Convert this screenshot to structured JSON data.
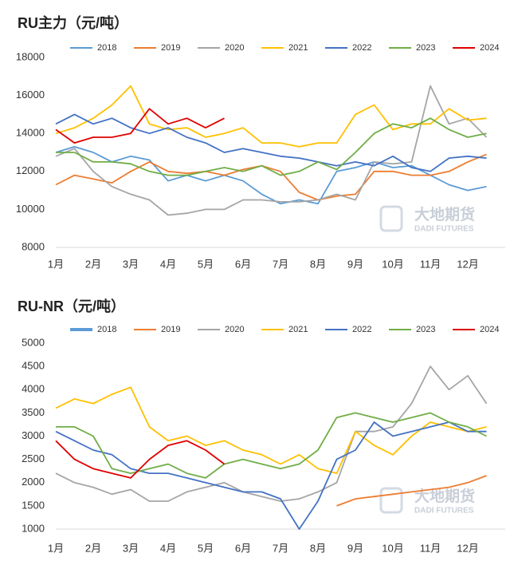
{
  "chart_data": [
    {
      "type": "line",
      "title": "RU主力（元/吨）",
      "categories": [
        "1月",
        null,
        "2月",
        null,
        "3月",
        null,
        "4月",
        null,
        "5月",
        null,
        "6月",
        null,
        "7月",
        null,
        "8月",
        null,
        "9月",
        null,
        "10月",
        null,
        "11月",
        null,
        "12月",
        null
      ],
      "ylim": [
        8000,
        18000
      ],
      "yticks": [
        8000,
        10000,
        12000,
        14000,
        16000,
        18000
      ],
      "grid": false,
      "annotations": [
        "大地期货",
        "DADI FUTURES"
      ],
      "series": [
        {
          "name": "2018",
          "color": "#5b9bd5",
          "values": [
            13000,
            13300,
            13000,
            12500,
            12800,
            12600,
            11500,
            11800,
            11500,
            11800,
            11500,
            10800,
            10300,
            10500,
            10300,
            12000,
            12200,
            12500,
            12200,
            12300,
            11800,
            11300,
            11000,
            11200
          ]
        },
        {
          "name": "2019",
          "color": "#ed7d31",
          "values": [
            11300,
            11800,
            11600,
            11400,
            12000,
            12500,
            12000,
            11900,
            12000,
            11800,
            12100,
            12300,
            12000,
            10900,
            10500,
            10700,
            10800,
            12000,
            12000,
            11800,
            11800,
            12000,
            12500,
            12900
          ]
        },
        {
          "name": "2020",
          "color": "#a5a5a5",
          "values": [
            12800,
            13200,
            12000,
            11200,
            10800,
            10500,
            9700,
            9800,
            10000,
            10000,
            10500,
            10500,
            10400,
            10400,
            10500,
            10800,
            10500,
            12500,
            12400,
            12500,
            16500,
            14500,
            14800,
            13800
          ]
        },
        {
          "name": "2021",
          "color": "#ffc000",
          "values": [
            14000,
            14300,
            14800,
            15500,
            16500,
            14500,
            14200,
            14300,
            13800,
            14000,
            14300,
            13500,
            13500,
            13300,
            13500,
            13500,
            15000,
            15500,
            14200,
            14500,
            14500,
            15300,
            14700,
            14800
          ]
        },
        {
          "name": "2022",
          "color": "#4472c4",
          "values": [
            14500,
            15000,
            14500,
            14800,
            14300,
            14000,
            14300,
            13800,
            13500,
            13000,
            13200,
            13000,
            12800,
            12700,
            12500,
            12300,
            12500,
            12300,
            12800,
            12200,
            12000,
            12700,
            12800,
            12700
          ]
        },
        {
          "name": "2023",
          "color": "#70ad47",
          "values": [
            13000,
            13000,
            12500,
            12500,
            12400,
            12000,
            11800,
            11800,
            12000,
            12200,
            12000,
            12300,
            11800,
            12000,
            12500,
            12100,
            13000,
            14000,
            14500,
            14300,
            14800,
            14200,
            13800,
            14000
          ]
        },
        {
          "name": "2024",
          "color": "#e00000",
          "values": [
            14200,
            13500,
            13800,
            13800,
            14000,
            15300,
            14500,
            14800,
            14300,
            14800,
            null,
            null,
            null,
            null,
            null,
            null,
            null,
            null,
            null,
            null,
            null,
            null,
            null,
            null
          ]
        }
      ]
    },
    {
      "type": "line",
      "title": "RU-NR（元/吨）",
      "categories": [
        "1月",
        null,
        "2月",
        null,
        "3月",
        null,
        "4月",
        null,
        "5月",
        null,
        "6月",
        null,
        "7月",
        null,
        "8月",
        null,
        "9月",
        null,
        "10月",
        null,
        "11月",
        null,
        "12月",
        null
      ],
      "ylim": [
        1000,
        5000
      ],
      "yticks": [
        1000,
        1500,
        2000,
        2500,
        3000,
        3500,
        4000,
        4500,
        5000
      ],
      "grid": false,
      "annotations": [
        "大地期货",
        "DADI FUTURES"
      ],
      "series": [
        {
          "name": "2018",
          "color": "#5b9bd5",
          "values": [
            null,
            null,
            null,
            null,
            null,
            null,
            null,
            null,
            null,
            null,
            null,
            null,
            null,
            null,
            null,
            null,
            null,
            null,
            null,
            null,
            null,
            null,
            null,
            null
          ]
        },
        {
          "name": "2019",
          "color": "#ed7d31",
          "values": [
            null,
            null,
            null,
            null,
            null,
            null,
            null,
            null,
            null,
            null,
            null,
            null,
            null,
            null,
            null,
            1500,
            1650,
            1700,
            1750,
            1800,
            1850,
            1900,
            2000,
            2150
          ]
        },
        {
          "name": "2020",
          "color": "#a5a5a5",
          "values": [
            2200,
            2000,
            1900,
            1750,
            1850,
            1600,
            1600,
            1800,
            1900,
            2000,
            1800,
            1700,
            1600,
            1650,
            1800,
            2000,
            3100,
            3100,
            3200,
            3700,
            4500,
            4000,
            4300,
            3700
          ]
        },
        {
          "name": "2021",
          "color": "#ffc000",
          "values": [
            3600,
            3800,
            3700,
            3900,
            4050,
            3200,
            2900,
            3000,
            2800,
            2900,
            2700,
            2600,
            2400,
            2600,
            2300,
            2200,
            3100,
            2800,
            2600,
            3000,
            3300,
            3200,
            3100,
            3200
          ]
        },
        {
          "name": "2022",
          "color": "#4472c4",
          "values": [
            3100,
            2900,
            2700,
            2600,
            2300,
            2200,
            2200,
            2100,
            2000,
            1900,
            1800,
            1800,
            1650,
            1000,
            1600,
            2500,
            2700,
            3300,
            3000,
            3100,
            3200,
            3300,
            3100,
            3100
          ]
        },
        {
          "name": "2023",
          "color": "#70ad47",
          "values": [
            3200,
            3200,
            3000,
            2300,
            2200,
            2300,
            2400,
            2200,
            2100,
            2400,
            2500,
            2400,
            2300,
            2400,
            2700,
            3400,
            3500,
            3400,
            3300,
            3400,
            3500,
            3300,
            3200,
            3000
          ]
        },
        {
          "name": "2024",
          "color": "#e00000",
          "values": [
            2900,
            2500,
            2300,
            2200,
            2100,
            2500,
            2800,
            2900,
            2700,
            2400,
            null,
            null,
            null,
            null,
            null,
            null,
            null,
            null,
            null,
            null,
            null,
            null,
            null,
            null
          ]
        }
      ]
    }
  ]
}
